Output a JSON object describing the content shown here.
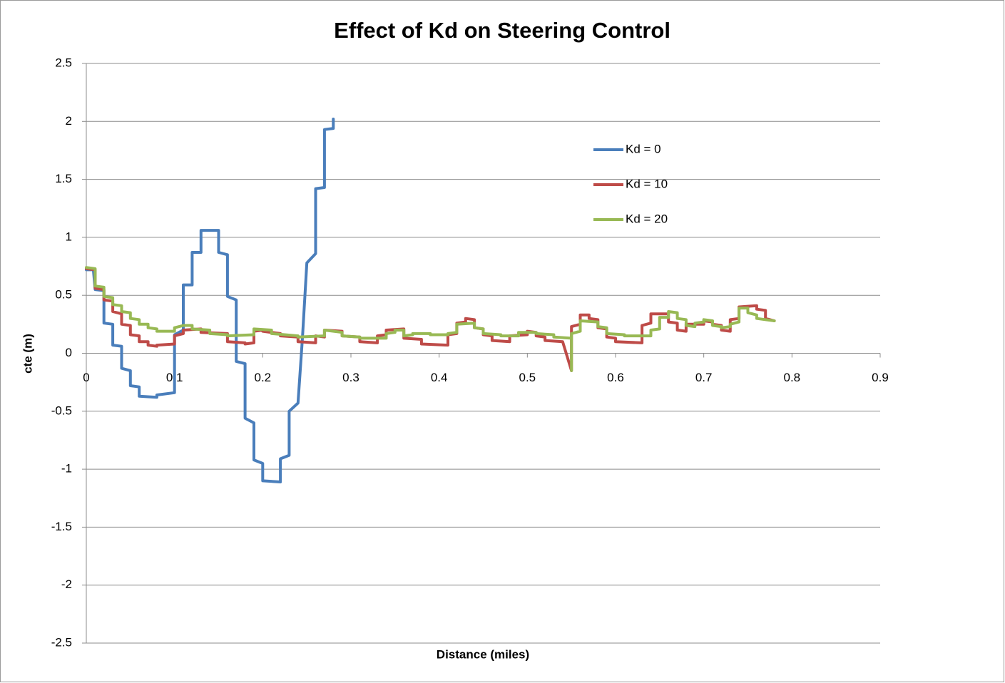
{
  "chart_data": {
    "type": "line",
    "title": "Effect of Kd on Steering Control",
    "x_label": "Distance (miles)",
    "y_label": "cte (m)",
    "xlim": [
      0,
      0.9
    ],
    "xticks": [
      0,
      0.1,
      0.2,
      0.3,
      0.4,
      0.5,
      0.6,
      0.7,
      0.8,
      0.9
    ],
    "ylim": [
      -2.5,
      2.5
    ],
    "yticks": [
      -2.5,
      -2,
      -1.5,
      -1,
      -0.5,
      0,
      0.5,
      1,
      1.5,
      2,
      2.5
    ],
    "grid": true,
    "legend": "right",
    "series": [
      {
        "name": "Kd = 0",
        "color": "#4a7ebb",
        "x": [
          0,
          0.008,
          0.01,
          0.02,
          0.02,
          0.03,
          0.03,
          0.04,
          0.04,
          0.05,
          0.05,
          0.06,
          0.06,
          0.08,
          0.08,
          0.1,
          0.1,
          0.11,
          0.11,
          0.12,
          0.12,
          0.13,
          0.13,
          0.15,
          0.15,
          0.16,
          0.16,
          0.17,
          0.17,
          0.18,
          0.18,
          0.19,
          0.19,
          0.2,
          0.2,
          0.22,
          0.22,
          0.23,
          0.23,
          0.24,
          0.245,
          0.25,
          0.26,
          0.26,
          0.27,
          0.27,
          0.28,
          0.28
        ],
        "values": [
          0.72,
          0.72,
          0.55,
          0.54,
          0.26,
          0.25,
          0.07,
          0.06,
          -0.13,
          -0.15,
          -0.28,
          -0.29,
          -0.37,
          -0.38,
          -0.36,
          -0.34,
          0.16,
          0.2,
          0.59,
          0.59,
          0.87,
          0.87,
          1.06,
          1.06,
          0.87,
          0.85,
          0.49,
          0.46,
          -0.07,
          -0.09,
          -0.56,
          -0.6,
          -0.92,
          -0.95,
          -1.1,
          -1.11,
          -0.91,
          -0.88,
          -0.5,
          -0.43,
          0.13,
          0.78,
          0.86,
          1.42,
          1.43,
          1.93,
          1.94,
          2.02
        ]
      },
      {
        "name": "Kd = 10",
        "color": "#be4b48",
        "x": [
          0,
          0.01,
          0.01,
          0.02,
          0.02,
          0.03,
          0.03,
          0.04,
          0.04,
          0.05,
          0.05,
          0.06,
          0.06,
          0.07,
          0.07,
          0.08,
          0.08,
          0.1,
          0.1,
          0.11,
          0.11,
          0.13,
          0.13,
          0.16,
          0.16,
          0.18,
          0.18,
          0.19,
          0.19,
          0.2,
          0.2,
          0.22,
          0.22,
          0.24,
          0.24,
          0.26,
          0.26,
          0.27,
          0.27,
          0.29,
          0.29,
          0.31,
          0.31,
          0.33,
          0.33,
          0.34,
          0.34,
          0.36,
          0.36,
          0.38,
          0.38,
          0.41,
          0.41,
          0.42,
          0.42,
          0.43,
          0.43,
          0.44,
          0.44,
          0.45,
          0.45,
          0.46,
          0.46,
          0.48,
          0.48,
          0.5,
          0.5,
          0.51,
          0.51,
          0.52,
          0.52,
          0.54,
          0.55,
          0.55,
          0.56,
          0.56,
          0.57,
          0.57,
          0.58,
          0.58,
          0.59,
          0.59,
          0.6,
          0.6,
          0.63,
          0.63,
          0.64,
          0.64,
          0.66,
          0.66,
          0.67,
          0.67,
          0.68,
          0.68,
          0.7,
          0.7,
          0.71,
          0.71,
          0.72,
          0.72,
          0.73,
          0.73,
          0.74,
          0.74,
          0.76,
          0.76,
          0.77,
          0.77,
          0.78
        ],
        "values": [
          0.73,
          0.72,
          0.56,
          0.55,
          0.46,
          0.45,
          0.36,
          0.34,
          0.25,
          0.24,
          0.16,
          0.15,
          0.1,
          0.1,
          0.07,
          0.06,
          0.07,
          0.08,
          0.15,
          0.17,
          0.2,
          0.21,
          0.18,
          0.17,
          0.1,
          0.09,
          0.08,
          0.09,
          0.19,
          0.2,
          0.19,
          0.17,
          0.15,
          0.14,
          0.1,
          0.09,
          0.15,
          0.14,
          0.2,
          0.19,
          0.15,
          0.14,
          0.1,
          0.09,
          0.15,
          0.16,
          0.2,
          0.21,
          0.13,
          0.12,
          0.08,
          0.07,
          0.16,
          0.17,
          0.26,
          0.27,
          0.3,
          0.29,
          0.22,
          0.21,
          0.16,
          0.15,
          0.11,
          0.1,
          0.15,
          0.16,
          0.19,
          0.18,
          0.15,
          0.14,
          0.11,
          0.1,
          -0.15,
          0.23,
          0.25,
          0.33,
          0.33,
          0.3,
          0.29,
          0.22,
          0.21,
          0.14,
          0.13,
          0.1,
          0.09,
          0.24,
          0.26,
          0.34,
          0.34,
          0.27,
          0.26,
          0.2,
          0.19,
          0.25,
          0.25,
          0.28,
          0.27,
          0.25,
          0.24,
          0.2,
          0.19,
          0.29,
          0.3,
          0.4,
          0.41,
          0.38,
          0.37,
          0.3,
          0.28
        ]
      },
      {
        "name": "Kd = 20",
        "color": "#98b954",
        "x": [
          0,
          0.01,
          0.01,
          0.02,
          0.02,
          0.03,
          0.03,
          0.04,
          0.04,
          0.05,
          0.05,
          0.06,
          0.06,
          0.07,
          0.07,
          0.08,
          0.08,
          0.1,
          0.1,
          0.11,
          0.12,
          0.12,
          0.14,
          0.14,
          0.16,
          0.16,
          0.19,
          0.19,
          0.21,
          0.21,
          0.24,
          0.24,
          0.27,
          0.27,
          0.29,
          0.29,
          0.31,
          0.31,
          0.34,
          0.34,
          0.35,
          0.35,
          0.36,
          0.36,
          0.37,
          0.37,
          0.39,
          0.39,
          0.41,
          0.41,
          0.42,
          0.42,
          0.44,
          0.44,
          0.45,
          0.45,
          0.47,
          0.47,
          0.49,
          0.49,
          0.51,
          0.51,
          0.53,
          0.53,
          0.55,
          0.55,
          0.55,
          0.56,
          0.56,
          0.58,
          0.58,
          0.59,
          0.59,
          0.61,
          0.61,
          0.64,
          0.64,
          0.65,
          0.65,
          0.66,
          0.66,
          0.67,
          0.67,
          0.68,
          0.68,
          0.69,
          0.69,
          0.7,
          0.7,
          0.71,
          0.71,
          0.72,
          0.72,
          0.73,
          0.73,
          0.74,
          0.74,
          0.75,
          0.75,
          0.76,
          0.76,
          0.78
        ],
        "values": [
          0.74,
          0.73,
          0.58,
          0.57,
          0.49,
          0.48,
          0.42,
          0.41,
          0.36,
          0.35,
          0.3,
          0.29,
          0.25,
          0.25,
          0.22,
          0.21,
          0.19,
          0.19,
          0.22,
          0.24,
          0.24,
          0.21,
          0.2,
          0.17,
          0.16,
          0.15,
          0.16,
          0.21,
          0.2,
          0.17,
          0.15,
          0.14,
          0.15,
          0.2,
          0.18,
          0.15,
          0.14,
          0.13,
          0.13,
          0.17,
          0.18,
          0.2,
          0.2,
          0.15,
          0.16,
          0.17,
          0.17,
          0.16,
          0.16,
          0.17,
          0.18,
          0.25,
          0.26,
          0.22,
          0.21,
          0.17,
          0.16,
          0.15,
          0.15,
          0.18,
          0.18,
          0.17,
          0.16,
          0.14,
          0.13,
          -0.15,
          0.17,
          0.19,
          0.28,
          0.27,
          0.23,
          0.22,
          0.17,
          0.16,
          0.15,
          0.15,
          0.2,
          0.21,
          0.31,
          0.31,
          0.36,
          0.35,
          0.3,
          0.29,
          0.24,
          0.23,
          0.26,
          0.27,
          0.29,
          0.28,
          0.24,
          0.23,
          0.22,
          0.23,
          0.25,
          0.27,
          0.39,
          0.39,
          0.35,
          0.33,
          0.3,
          0.28
        ]
      }
    ]
  }
}
